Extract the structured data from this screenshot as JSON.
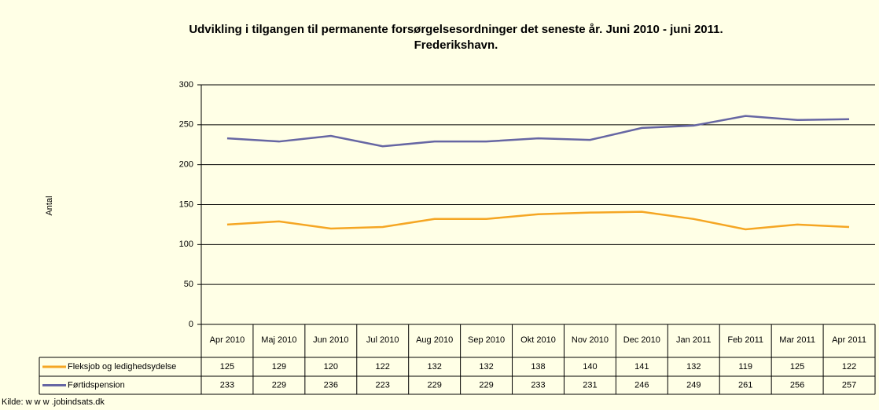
{
  "chart_data": {
    "type": "line",
    "title": [
      "Udvikling i tilgangen til permanente forsørgelsesordninger det seneste år. Juni 2010 - juni 2011.",
      "Frederikshavn."
    ],
    "y_label": "Antal",
    "source": "Kilde: w w w .jobindsats.dk",
    "categories": [
      "Apr 2010",
      "Maj 2010",
      "Jun 2010",
      "Jul 2010",
      "Aug 2010",
      "Sep 2010",
      "Okt 2010",
      "Nov 2010",
      "Dec 2010",
      "Jan 2011",
      "Feb 2011",
      "Mar 2011",
      "Apr 2011"
    ],
    "series": [
      {
        "name": "Fleksjob og ledighedsydelse",
        "color": "#f5a623",
        "values": [
          125,
          129,
          120,
          122,
          132,
          132,
          138,
          140,
          141,
          132,
          119,
          125,
          122
        ]
      },
      {
        "name": "Førtidspension",
        "color": "#6666a3",
        "values": [
          233,
          229,
          236,
          223,
          229,
          229,
          233,
          231,
          246,
          249,
          261,
          256,
          257
        ]
      }
    ],
    "ylim": [
      0,
      300
    ],
    "yticks": [
      0,
      50,
      100,
      150,
      200,
      250,
      300
    ],
    "grid": true,
    "data_table": true
  }
}
